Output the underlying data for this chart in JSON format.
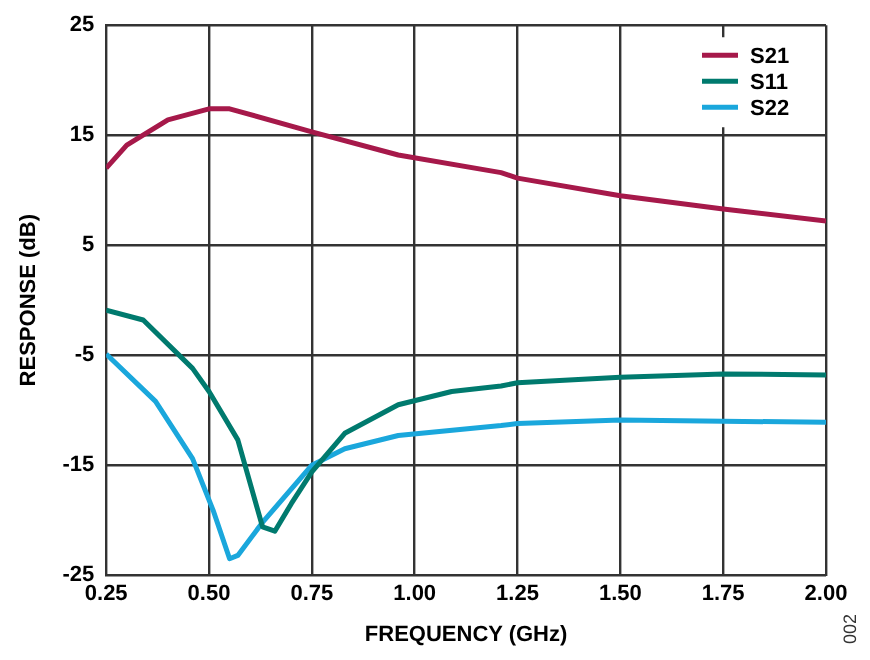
{
  "chart_data": {
    "type": "line",
    "xlabel": "FREQUENCY (GHz)",
    "ylabel": "RESPONSE (dB)",
    "xlim": [
      0.25,
      2.0
    ],
    "xticks": [
      {
        "value": 0.25,
        "label": "0.25"
      },
      {
        "value": 0.5,
        "label": "0.50"
      },
      {
        "value": 0.75,
        "label": "0.75"
      },
      {
        "value": 1.0,
        "label": "1.00"
      },
      {
        "value": 1.25,
        "label": "1.25"
      },
      {
        "value": 1.5,
        "label": "1.50"
      },
      {
        "value": 1.75,
        "label": "1.75"
      },
      {
        "value": 2.0,
        "label": "2.00"
      }
    ],
    "ylim": [
      -25,
      25
    ],
    "yticks": [
      -25,
      -15,
      -5,
      5,
      15,
      25
    ],
    "grid": true,
    "legend": "top right",
    "marker": "none",
    "line_style": "solid",
    "annotations": [
      "002"
    ],
    "series": [
      {
        "name": "S21",
        "color": "#a6194a",
        "x": [
          0.25,
          0.3,
          0.4,
          0.5,
          0.55,
          0.75,
          0.96,
          1.21,
          1.25,
          1.5,
          1.75,
          2.0
        ],
        "values": [
          12.0,
          14.1,
          16.4,
          17.4,
          17.4,
          15.3,
          13.2,
          11.6,
          11.1,
          9.5,
          8.3,
          7.2
        ]
      },
      {
        "name": "S11",
        "color": "#007a6e",
        "x": [
          0.25,
          0.34,
          0.46,
          0.5,
          0.57,
          0.63,
          0.66,
          0.7,
          0.75,
          0.83,
          0.96,
          1.09,
          1.21,
          1.25,
          1.5,
          1.75,
          2.0
        ],
        "values": [
          -0.9,
          -1.8,
          -6.2,
          -8.3,
          -12.7,
          -20.6,
          -21.0,
          -18.5,
          -15.6,
          -12.1,
          -9.5,
          -8.3,
          -7.8,
          -7.5,
          -7.0,
          -6.7,
          -6.8
        ]
      },
      {
        "name": "S22",
        "color": "#1aa7dc",
        "x": [
          0.25,
          0.37,
          0.46,
          0.51,
          0.55,
          0.57,
          0.63,
          0.75,
          0.83,
          0.96,
          1.21,
          1.25,
          1.5,
          1.75,
          2.0
        ],
        "values": [
          -4.9,
          -9.2,
          -14.4,
          -19.1,
          -23.5,
          -23.2,
          -20.2,
          -15.0,
          -13.5,
          -12.3,
          -11.4,
          -11.2,
          -10.9,
          -11.0,
          -11.1
        ]
      }
    ]
  }
}
